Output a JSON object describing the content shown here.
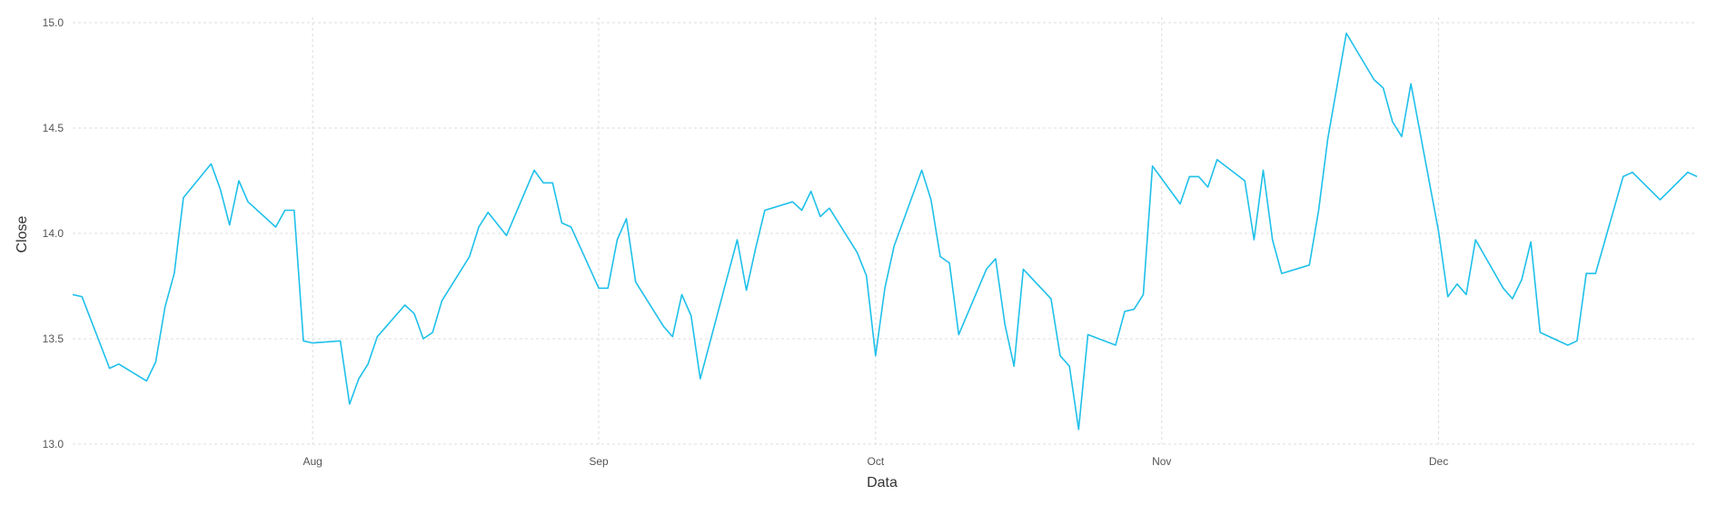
{
  "chart_data": {
    "type": "line",
    "title": "",
    "xlabel": "Data",
    "ylabel": "Close",
    "x_ticks": [
      {
        "label": "Aug",
        "date": "2023-08-01"
      },
      {
        "label": "Sep",
        "date": "2023-09-01"
      },
      {
        "label": "Oct",
        "date": "2023-10-01"
      },
      {
        "label": "Nov",
        "date": "2023-11-01"
      },
      {
        "label": "Dec",
        "date": "2023-12-01"
      }
    ],
    "y_ticks": [
      {
        "label": "13.0",
        "value": 13.0
      },
      {
        "label": "13.5",
        "value": 13.5
      },
      {
        "label": "14.0",
        "value": 14.0
      },
      {
        "label": "14.5",
        "value": 14.5
      },
      {
        "label": "15.0",
        "value": 15.0
      }
    ],
    "xlim": [
      "2023-07-06",
      "2023-12-29"
    ],
    "ylim": [
      13.0,
      15.0
    ],
    "grid": true,
    "line_color": "#1ec0ea",
    "series": [
      {
        "points": [
          {
            "x": "2023-07-06",
            "y": 13.71
          },
          {
            "x": "2023-07-07",
            "y": 13.7
          },
          {
            "x": "2023-07-10",
            "y": 13.36
          },
          {
            "x": "2023-07-11",
            "y": 13.38
          },
          {
            "x": "2023-07-14",
            "y": 13.3
          },
          {
            "x": "2023-07-15",
            "y": 13.39
          },
          {
            "x": "2023-07-16",
            "y": 13.65
          },
          {
            "x": "2023-07-17",
            "y": 13.81
          },
          {
            "x": "2023-07-18",
            "y": 14.17
          },
          {
            "x": "2023-07-21",
            "y": 14.33
          },
          {
            "x": "2023-07-22",
            "y": 14.21
          },
          {
            "x": "2023-07-23",
            "y": 14.04
          },
          {
            "x": "2023-07-24",
            "y": 14.25
          },
          {
            "x": "2023-07-25",
            "y": 14.15
          },
          {
            "x": "2023-07-28",
            "y": 14.03
          },
          {
            "x": "2023-07-29",
            "y": 14.11
          },
          {
            "x": "2023-07-30",
            "y": 14.11
          },
          {
            "x": "2023-07-31",
            "y": 13.49
          },
          {
            "x": "2023-08-01",
            "y": 13.48
          },
          {
            "x": "2023-08-04",
            "y": 13.49
          },
          {
            "x": "2023-08-05",
            "y": 13.19
          },
          {
            "x": "2023-08-06",
            "y": 13.31
          },
          {
            "x": "2023-08-07",
            "y": 13.38
          },
          {
            "x": "2023-08-08",
            "y": 13.51
          },
          {
            "x": "2023-08-11",
            "y": 13.66
          },
          {
            "x": "2023-08-12",
            "y": 13.62
          },
          {
            "x": "2023-08-13",
            "y": 13.5
          },
          {
            "x": "2023-08-14",
            "y": 13.53
          },
          {
            "x": "2023-08-15",
            "y": 13.68
          },
          {
            "x": "2023-08-18",
            "y": 13.89
          },
          {
            "x": "2023-08-19",
            "y": 14.03
          },
          {
            "x": "2023-08-20",
            "y": 14.1
          },
          {
            "x": "2023-08-22",
            "y": 13.99
          },
          {
            "x": "2023-08-25",
            "y": 14.3
          },
          {
            "x": "2023-08-26",
            "y": 14.24
          },
          {
            "x": "2023-08-27",
            "y": 14.24
          },
          {
            "x": "2023-08-28",
            "y": 14.05
          },
          {
            "x": "2023-08-29",
            "y": 14.03
          },
          {
            "x": "2023-09-01",
            "y": 13.74
          },
          {
            "x": "2023-09-02",
            "y": 13.74
          },
          {
            "x": "2023-09-03",
            "y": 13.97
          },
          {
            "x": "2023-09-04",
            "y": 14.07
          },
          {
            "x": "2023-09-05",
            "y": 13.77
          },
          {
            "x": "2023-09-08",
            "y": 13.56
          },
          {
            "x": "2023-09-09",
            "y": 13.51
          },
          {
            "x": "2023-09-10",
            "y": 13.71
          },
          {
            "x": "2023-09-11",
            "y": 13.61
          },
          {
            "x": "2023-09-12",
            "y": 13.31
          },
          {
            "x": "2023-09-16",
            "y": 13.97
          },
          {
            "x": "2023-09-17",
            "y": 13.73
          },
          {
            "x": "2023-09-18",
            "y": 13.93
          },
          {
            "x": "2023-09-19",
            "y": 14.11
          },
          {
            "x": "2023-09-22",
            "y": 14.15
          },
          {
            "x": "2023-09-23",
            "y": 14.11
          },
          {
            "x": "2023-09-24",
            "y": 14.2
          },
          {
            "x": "2023-09-25",
            "y": 14.08
          },
          {
            "x": "2023-09-26",
            "y": 14.12
          },
          {
            "x": "2023-09-29",
            "y": 13.91
          },
          {
            "x": "2023-09-30",
            "y": 13.8
          },
          {
            "x": "2023-10-01",
            "y": 13.42
          },
          {
            "x": "2023-10-02",
            "y": 13.74
          },
          {
            "x": "2023-10-03",
            "y": 13.94
          },
          {
            "x": "2023-10-06",
            "y": 14.3
          },
          {
            "x": "2023-10-07",
            "y": 14.16
          },
          {
            "x": "2023-10-08",
            "y": 13.89
          },
          {
            "x": "2023-10-09",
            "y": 13.86
          },
          {
            "x": "2023-10-10",
            "y": 13.52
          },
          {
            "x": "2023-10-13",
            "y": 13.83
          },
          {
            "x": "2023-10-14",
            "y": 13.88
          },
          {
            "x": "2023-10-15",
            "y": 13.57
          },
          {
            "x": "2023-10-16",
            "y": 13.37
          },
          {
            "x": "2023-10-17",
            "y": 13.83
          },
          {
            "x": "2023-10-20",
            "y": 13.69
          },
          {
            "x": "2023-10-21",
            "y": 13.42
          },
          {
            "x": "2023-10-22",
            "y": 13.37
          },
          {
            "x": "2023-10-23",
            "y": 13.07
          },
          {
            "x": "2023-10-24",
            "y": 13.52
          },
          {
            "x": "2023-10-27",
            "y": 13.47
          },
          {
            "x": "2023-10-28",
            "y": 13.63
          },
          {
            "x": "2023-10-29",
            "y": 13.64
          },
          {
            "x": "2023-10-30",
            "y": 13.71
          },
          {
            "x": "2023-10-31",
            "y": 14.32
          },
          {
            "x": "2023-11-03",
            "y": 14.14
          },
          {
            "x": "2023-11-04",
            "y": 14.27
          },
          {
            "x": "2023-11-05",
            "y": 14.27
          },
          {
            "x": "2023-11-06",
            "y": 14.22
          },
          {
            "x": "2023-11-07",
            "y": 14.35
          },
          {
            "x": "2023-11-10",
            "y": 14.25
          },
          {
            "x": "2023-11-11",
            "y": 13.97
          },
          {
            "x": "2023-11-12",
            "y": 14.3
          },
          {
            "x": "2023-11-13",
            "y": 13.97
          },
          {
            "x": "2023-11-14",
            "y": 13.81
          },
          {
            "x": "2023-11-17",
            "y": 13.85
          },
          {
            "x": "2023-11-18",
            "y": 14.11
          },
          {
            "x": "2023-11-19",
            "y": 14.45
          },
          {
            "x": "2023-11-21",
            "y": 14.95
          },
          {
            "x": "2023-11-24",
            "y": 14.73
          },
          {
            "x": "2023-11-25",
            "y": 14.69
          },
          {
            "x": "2023-11-26",
            "y": 14.53
          },
          {
            "x": "2023-11-27",
            "y": 14.46
          },
          {
            "x": "2023-11-28",
            "y": 14.71
          },
          {
            "x": "2023-12-01",
            "y": 14.01
          },
          {
            "x": "2023-12-02",
            "y": 13.7
          },
          {
            "x": "2023-12-03",
            "y": 13.76
          },
          {
            "x": "2023-12-04",
            "y": 13.71
          },
          {
            "x": "2023-12-05",
            "y": 13.97
          },
          {
            "x": "2023-12-08",
            "y": 13.74
          },
          {
            "x": "2023-12-09",
            "y": 13.69
          },
          {
            "x": "2023-12-10",
            "y": 13.78
          },
          {
            "x": "2023-12-11",
            "y": 13.96
          },
          {
            "x": "2023-12-12",
            "y": 13.53
          },
          {
            "x": "2023-12-15",
            "y": 13.47
          },
          {
            "x": "2023-12-16",
            "y": 13.49
          },
          {
            "x": "2023-12-17",
            "y": 13.81
          },
          {
            "x": "2023-12-18",
            "y": 13.81
          },
          {
            "x": "2023-12-21",
            "y": 14.27
          },
          {
            "x": "2023-12-22",
            "y": 14.29
          },
          {
            "x": "2023-12-25",
            "y": 14.16
          },
          {
            "x": "2023-12-28",
            "y": 14.29
          },
          {
            "x": "2023-12-29",
            "y": 14.27
          }
        ]
      }
    ]
  }
}
